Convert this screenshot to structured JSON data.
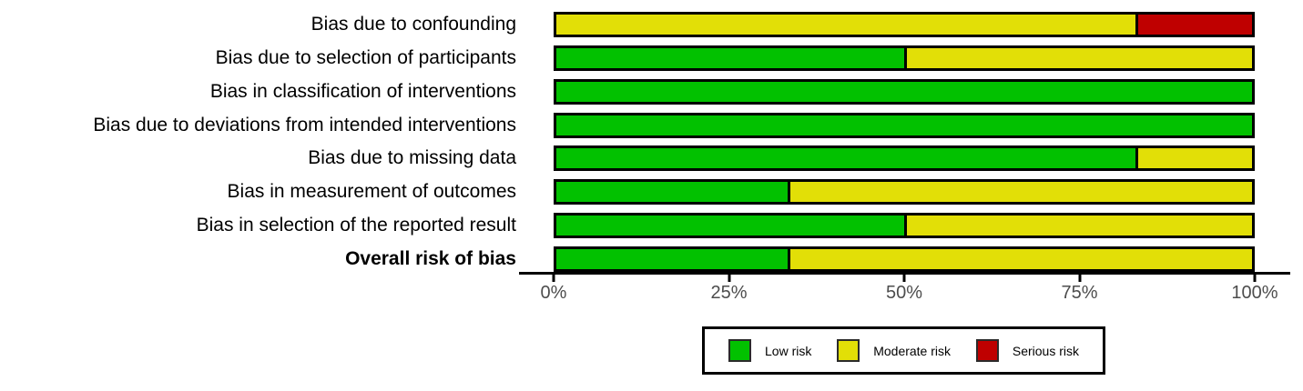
{
  "chart_data": {
    "type": "bar",
    "orientation": "horizontal",
    "stacked": true,
    "grid": false,
    "categories": [
      "Bias due to confounding",
      "Bias due to selection of participants",
      "Bias in classification of interventions",
      "Bias due to deviations from intended interventions",
      "Bias due to missing data",
      "Bias in measurement of outcomes",
      "Bias in selection of the reported result",
      "Overall risk of bias"
    ],
    "bold_categories": [
      "Overall risk of bias"
    ],
    "series": [
      {
        "name": "Low risk",
        "color": "#02C100",
        "values": [
          0,
          50,
          100,
          100,
          83.3,
          33.3,
          50,
          33.3
        ]
      },
      {
        "name": "Moderate risk",
        "color": "#E2DF07",
        "values": [
          83.3,
          50,
          0,
          0,
          16.7,
          66.7,
          50,
          66.7
        ]
      },
      {
        "name": "Serious risk",
        "color": "#BF0000",
        "values": [
          16.7,
          0,
          0,
          0,
          0,
          0,
          0,
          0
        ]
      }
    ],
    "x_axis": {
      "range": [
        0,
        100
      ],
      "ticks": [
        {
          "label": "0%",
          "position": 0
        },
        {
          "label": "25%",
          "position": 25
        },
        {
          "label": "50%",
          "position": 50
        },
        {
          "label": "75%",
          "position": 75
        },
        {
          "label": "100%",
          "position": 100
        }
      ]
    },
    "legend": {
      "position": "bottom",
      "entries": [
        {
          "label": "Low risk",
          "color": "#02C100"
        },
        {
          "label": "Moderate risk",
          "color": "#E2DF07"
        },
        {
          "label": "Serious risk",
          "color": "#BF0000"
        }
      ]
    }
  }
}
